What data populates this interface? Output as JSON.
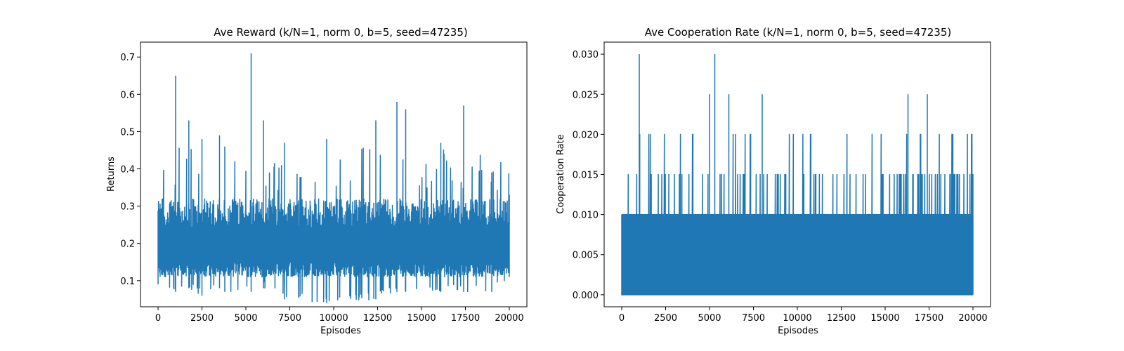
{
  "chart_data": [
    {
      "type": "line",
      "title": "Ave Reward (k/N=1, norm 0, b=5, seed=47235)",
      "xlabel": "Episodes",
      "ylabel": "Returns",
      "xlim": [
        -1000,
        21000
      ],
      "ylim": [
        0.03,
        0.74
      ],
      "xticks": [
        0,
        2500,
        5000,
        7500,
        10000,
        12500,
        15000,
        17500,
        20000
      ],
      "yticks": [
        0.1,
        0.2,
        0.3,
        0.4,
        0.5,
        0.6,
        0.7
      ],
      "ytick_labels": [
        "0.1",
        "0.2",
        "0.3",
        "0.4",
        "0.5",
        "0.6",
        "0.7"
      ],
      "color": "#1f77b4",
      "series": [
        {
          "x": [
            0,
            1000,
            1750,
            2500,
            3500,
            3800,
            5300,
            6000,
            7200,
            9600,
            12400,
            13600,
            14100,
            16100,
            17400,
            19000,
            20000
          ],
          "y_min": [
            0.09,
            0.07,
            0.08,
            0.06,
            0.08,
            0.07,
            0.07,
            0.08,
            0.05,
            0.04,
            0.05,
            0.07,
            0.07,
            0.07,
            0.07,
            0.07,
            0.11
          ],
          "y_max": [
            0.28,
            0.65,
            0.53,
            0.48,
            0.49,
            0.46,
            0.71,
            0.53,
            0.47,
            0.48,
            0.53,
            0.58,
            0.56,
            0.47,
            0.57,
            0.39,
            0.33
          ]
        }
      ]
    },
    {
      "type": "line",
      "title": "Ave Cooperation Rate (k/N=1, norm 0, b=5, seed=47235)",
      "xlabel": "Episodes",
      "ylabel": "Cooperation Rate",
      "xlim": [
        -1000,
        21000
      ],
      "ylim": [
        -0.0015,
        0.0315
      ],
      "xticks": [
        0,
        2500,
        5000,
        7500,
        10000,
        12500,
        15000,
        17500,
        20000
      ],
      "yticks": [
        0,
        0.005,
        0.01,
        0.015,
        0.02,
        0.025,
        0.03
      ],
      "ytick_labels": [
        "0.000",
        "0.005",
        "0.010",
        "0.015",
        "0.020",
        "0.025",
        "0.030"
      ],
      "color": "#1f77b4",
      "series": [
        {
          "x": [
            1000,
            5000,
            5300,
            6100,
            8000,
            16300,
            17400
          ],
          "y_max": [
            0.03,
            0.025,
            0.03,
            0.025,
            0.025,
            0.025,
            0.025
          ],
          "typical_range": [
            0,
            0.01
          ]
        }
      ]
    }
  ]
}
